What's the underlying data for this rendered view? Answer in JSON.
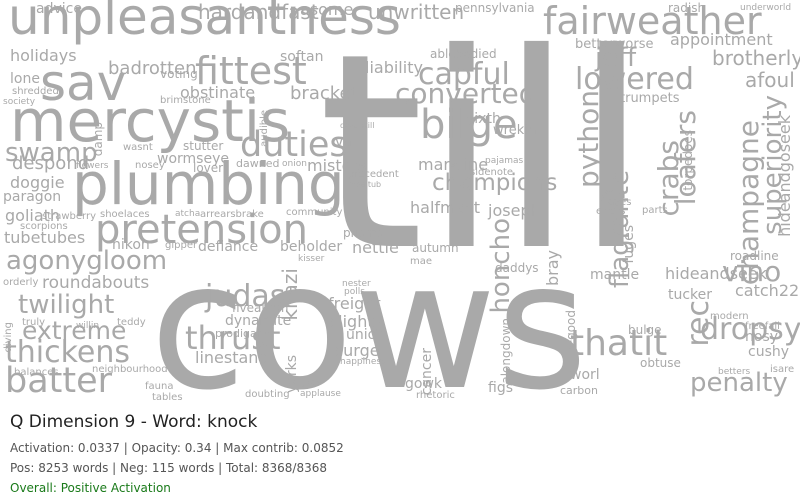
{
  "header": {
    "title": "Q Dimension 9 - Word: knock"
  },
  "stats": {
    "line1": "Activation: 0.0337 | Opacity: 0.34 | Max contrib: 0.0852",
    "line2": "Pos: 8253 words | Neg: 115 words | Total: 8368/8368",
    "overall": "Overall: Positive Activation"
  },
  "colors": {
    "word": "#a9a9a9",
    "overall_positive": "#1a7a1a"
  },
  "words": [
    "till",
    "cows",
    "unpleasantness",
    "plumbing",
    "mercystis",
    "fairweather",
    "pretension",
    "fittest",
    "sav",
    "bilge",
    "champions",
    "agonygloom",
    "batter",
    "thickens",
    "extreme",
    "twilight",
    "thrust",
    "duties",
    "thatit",
    "honcho",
    "superiority",
    "champagne",
    "crabs",
    "python",
    "penalty",
    "dropsy",
    "vino",
    "judas",
    "capful",
    "lowered",
    "converted",
    "jeff",
    "appointment",
    "brotherly",
    "afoul",
    "swamp",
    "holidays",
    "advice",
    "hardandfast",
    "asome",
    "unwritten",
    "pennsylvania",
    "betterworse",
    "radish",
    "underworld",
    "softan",
    "badrotten",
    "voting",
    "obstinate",
    "bracket",
    "liability",
    "ablebodied",
    "sixth",
    "wrekin",
    "trumpets",
    "lone",
    "shredded",
    "society",
    "despond",
    "doggie",
    "paragon",
    "goliath",
    "tubetubes",
    "strawberry",
    "scorpions",
    "roundabouts",
    "nikon",
    "defiance",
    "beholder",
    "nettle",
    "autumn",
    "misters",
    "vain",
    "wormseye",
    "stutter",
    "lover",
    "dawned",
    "halfmast",
    "joseph",
    "markline",
    "flagrante",
    "loafers",
    "hideandseek",
    "hideandgoseek",
    "torpedoes",
    "catch22",
    "tucker",
    "roadline",
    "modern",
    "nosy",
    "cushy",
    "freefall",
    "rec",
    "bray",
    "fuges",
    "daddys",
    "mantle",
    "figs",
    "worl",
    "gowk",
    "alongdown",
    "cancer",
    "union",
    "blighty",
    "purge",
    "freight",
    "linestand",
    "fivealarm",
    "dynamite",
    "prodigal",
    "khazi",
    "yorks",
    "obtuse",
    "bulge",
    "finegood",
    "carbon",
    "rhetoric",
    "isare",
    "betters",
    "orderly",
    "diving",
    "truly",
    "balances",
    "neighbourhood",
    "fauna",
    "tables",
    "teddy",
    "willin",
    "doubting",
    "applause",
    "joes",
    "happiness",
    "kisser",
    "nester",
    "polls",
    "prisms",
    "community",
    "arrearsbrake",
    "shoelaces",
    "gipper",
    "errors",
    "yen",
    "ayes",
    "parts",
    "brimstone",
    "damp",
    "wasnt",
    "flowers",
    "nosey",
    "sidenote",
    "pajamas",
    "precedent",
    "mealtub",
    "deathkill",
    "audible",
    "onion",
    "atcha",
    "mae"
  ]
}
